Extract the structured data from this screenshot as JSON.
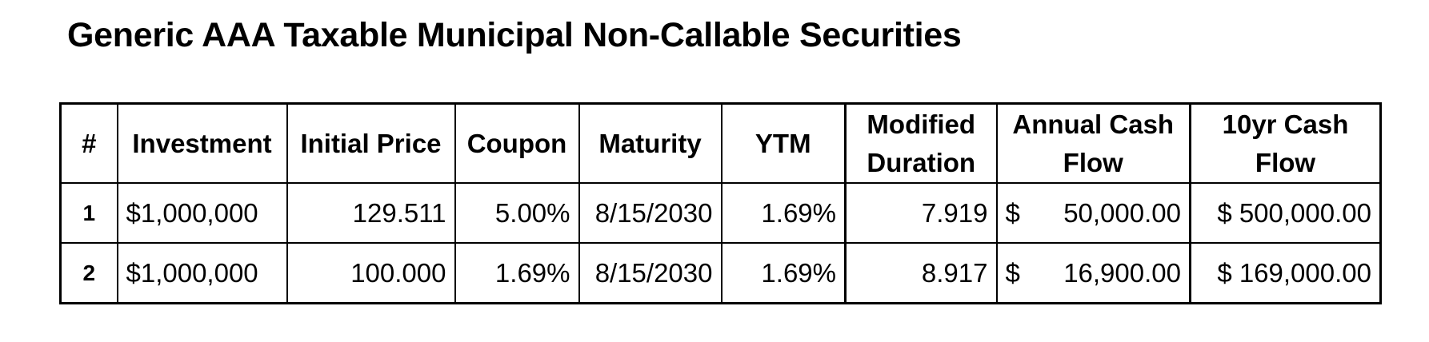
{
  "title": "Generic AAA Taxable Municipal Non-Callable Securities",
  "table": {
    "headers": [
      "#",
      "Investment",
      "Initial Price",
      "Coupon",
      "Maturity",
      "YTM",
      "Modified Duration",
      "Annual Cash Flow",
      "10yr Cash Flow"
    ],
    "rows": [
      {
        "num": "1",
        "investment": "$1,000,000",
        "initial_price": "129.511",
        "coupon": "5.00%",
        "maturity": "8/15/2030",
        "ytm": "1.69%",
        "modified_duration": "7.919",
        "annual_cash_flow_symbol": "$",
        "annual_cash_flow": "50,000.00",
        "ten_yr_cash_flow": "$ 500,000.00"
      },
      {
        "num": "2",
        "investment": "$1,000,000",
        "initial_price": "100.000",
        "coupon": "1.69%",
        "maturity": "8/15/2030",
        "ytm": "1.69%",
        "modified_duration": "8.917",
        "annual_cash_flow_symbol": "$",
        "annual_cash_flow": "16,900.00",
        "ten_yr_cash_flow": "$ 169,000.00"
      }
    ]
  }
}
